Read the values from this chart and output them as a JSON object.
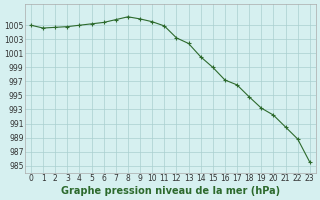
{
  "x": [
    0,
    1,
    2,
    3,
    4,
    5,
    6,
    7,
    8,
    9,
    10,
    11,
    12,
    13,
    14,
    15,
    16,
    17,
    18,
    19,
    20,
    21,
    22,
    23
  ],
  "y": [
    1005.0,
    1004.6,
    1004.7,
    1004.8,
    1005.0,
    1005.2,
    1005.4,
    1005.8,
    1006.2,
    1005.9,
    1005.5,
    1004.9,
    1003.2,
    1002.4,
    1000.5,
    999.0,
    997.2,
    996.5,
    994.8,
    993.2,
    992.2,
    990.5,
    988.8,
    985.5
  ],
  "line_color": "#2d6a2d",
  "marker": "+",
  "marker_color": "#2d6a2d",
  "bg_color": "#d6f0f0",
  "grid_color": "#aacfcf",
  "xlabel": "Graphe pression niveau de la mer (hPa)",
  "ylim": [
    984,
    1008
  ],
  "xlim": [
    -0.5,
    23.5
  ],
  "yticks": [
    985,
    987,
    989,
    991,
    993,
    995,
    997,
    999,
    1001,
    1003,
    1005
  ],
  "xticks": [
    0,
    1,
    2,
    3,
    4,
    5,
    6,
    7,
    8,
    9,
    10,
    11,
    12,
    13,
    14,
    15,
    16,
    17,
    18,
    19,
    20,
    21,
    22,
    23
  ],
  "tick_fontsize": 5.5,
  "label_fontsize": 7,
  "label_fontweight": "bold"
}
